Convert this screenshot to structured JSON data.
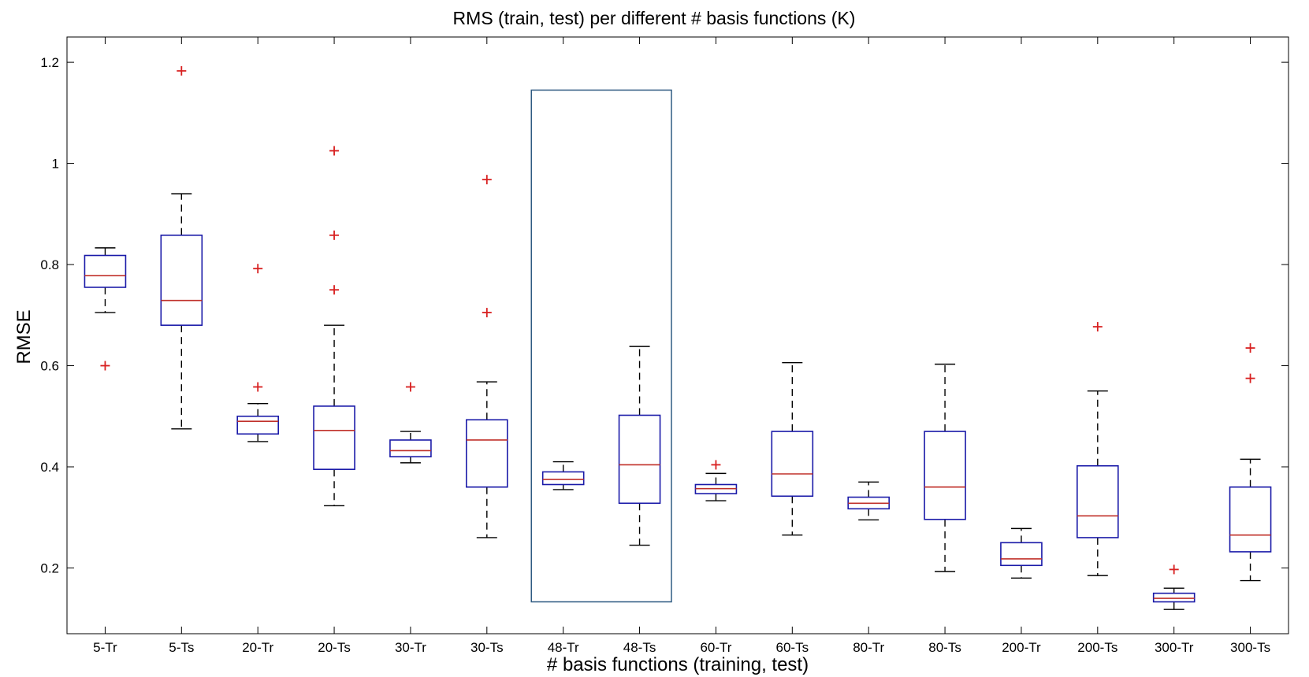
{
  "chart_data": {
    "type": "boxplot",
    "title": "RMS (train, test) per different # basis functions (K)",
    "xlabel": "# basis functions (training, test)",
    "ylabel": "RMSE",
    "ylim": [
      0.07,
      1.25
    ],
    "yticks": [
      "0.2",
      "0.4",
      "0.6",
      "0.8",
      "1",
      "1.2"
    ],
    "categories": [
      "5-Tr",
      "5-Ts",
      "20-Tr",
      "20-Ts",
      "30-Tr",
      "30-Ts",
      "48-Tr",
      "48-Ts",
      "60-Tr",
      "60-Ts",
      "80-Tr",
      "80-Ts",
      "200-Tr",
      "200-Ts",
      "300-Tr",
      "300-Ts"
    ],
    "boxes": [
      {
        "whisker_low": 0.705,
        "q1": 0.755,
        "median": 0.778,
        "q3": 0.818,
        "whisker_high": 0.833,
        "outliers": [
          0.6
        ]
      },
      {
        "whisker_low": 0.475,
        "q1": 0.68,
        "median": 0.729,
        "q3": 0.858,
        "whisker_high": 0.94,
        "outliers": [
          1.183
        ]
      },
      {
        "whisker_low": 0.45,
        "q1": 0.465,
        "median": 0.49,
        "q3": 0.5,
        "whisker_high": 0.525,
        "outliers": [
          0.792,
          0.558
        ]
      },
      {
        "whisker_low": 0.323,
        "q1": 0.395,
        "median": 0.472,
        "q3": 0.52,
        "whisker_high": 0.68,
        "outliers": [
          1.025,
          0.858,
          0.75
        ]
      },
      {
        "whisker_low": 0.408,
        "q1": 0.42,
        "median": 0.432,
        "q3": 0.453,
        "whisker_high": 0.47,
        "outliers": [
          0.558
        ]
      },
      {
        "whisker_low": 0.26,
        "q1": 0.36,
        "median": 0.453,
        "q3": 0.493,
        "whisker_high": 0.568,
        "outliers": [
          0.968,
          0.705
        ]
      },
      {
        "whisker_low": 0.355,
        "q1": 0.365,
        "median": 0.375,
        "q3": 0.39,
        "whisker_high": 0.41,
        "outliers": []
      },
      {
        "whisker_low": 0.245,
        "q1": 0.328,
        "median": 0.404,
        "q3": 0.502,
        "whisker_high": 0.638,
        "outliers": []
      },
      {
        "whisker_low": 0.333,
        "q1": 0.347,
        "median": 0.357,
        "q3": 0.365,
        "whisker_high": 0.387,
        "outliers": [
          0.404
        ]
      },
      {
        "whisker_low": 0.265,
        "q1": 0.342,
        "median": 0.386,
        "q3": 0.47,
        "whisker_high": 0.606,
        "outliers": []
      },
      {
        "whisker_low": 0.295,
        "q1": 0.317,
        "median": 0.328,
        "q3": 0.34,
        "whisker_high": 0.37,
        "outliers": []
      },
      {
        "whisker_low": 0.193,
        "q1": 0.296,
        "median": 0.36,
        "q3": 0.47,
        "whisker_high": 0.603,
        "outliers": []
      },
      {
        "whisker_low": 0.18,
        "q1": 0.205,
        "median": 0.218,
        "q3": 0.25,
        "whisker_high": 0.278,
        "outliers": []
      },
      {
        "whisker_low": 0.185,
        "q1": 0.26,
        "median": 0.303,
        "q3": 0.402,
        "whisker_high": 0.55,
        "outliers": [
          0.677
        ]
      },
      {
        "whisker_low": 0.118,
        "q1": 0.133,
        "median": 0.14,
        "q3": 0.15,
        "whisker_high": 0.16,
        "outliers": [
          0.197
        ]
      },
      {
        "whisker_low": 0.175,
        "q1": 0.232,
        "median": 0.265,
        "q3": 0.36,
        "whisker_high": 0.415,
        "outliers": [
          0.635,
          0.575
        ]
      }
    ],
    "highlight": {
      "categories": [
        "48-Tr",
        "48-Ts"
      ],
      "y_range": [
        0.133,
        1.145
      ]
    },
    "grid": false,
    "legend": "none",
    "colors": {
      "box": "#1a1aa8",
      "median": "#c0302a",
      "whisker": "#000000",
      "outlier": "#d82020",
      "highlight": "#2f5b82",
      "axes": "#000000"
    }
  }
}
